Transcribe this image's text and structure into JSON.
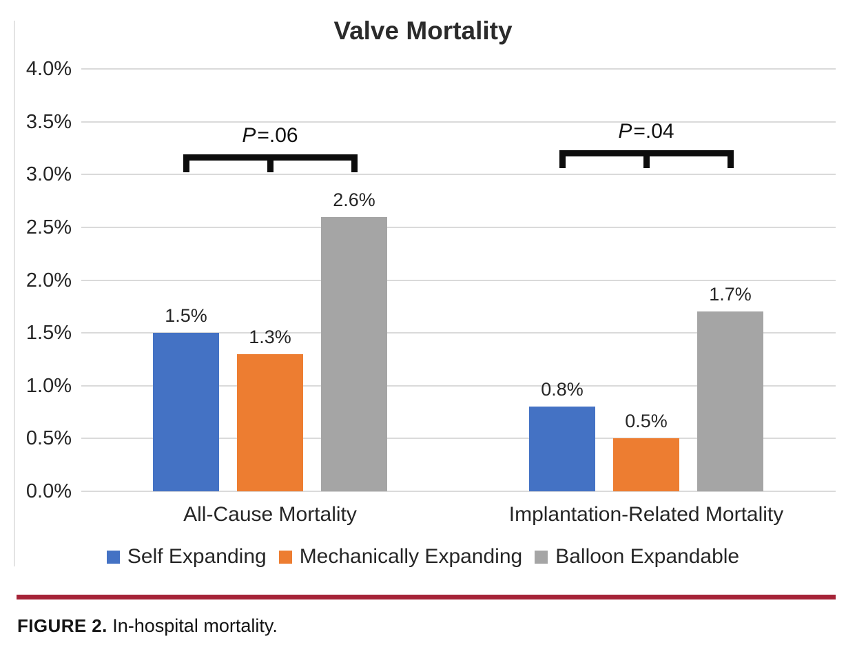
{
  "title": "Valve Mortality",
  "caption": {
    "label": "FIGURE 2.",
    "text": "In-hospital mortality."
  },
  "divider_color": "#A52337",
  "colors": {
    "self_expanding": "#4472C4",
    "mechanically_expanding": "#ED7D31",
    "balloon_expandable": "#A5A5A5",
    "gridline": "#DADADA",
    "bracket": "#0D0D0D"
  },
  "legend": [
    {
      "name": "Self Expanding",
      "color": "#4472C4"
    },
    {
      "name": "Mechanically Expanding",
      "color": "#ED7D31"
    },
    {
      "name": "Balloon Expandable",
      "color": "#A5A5A5"
    }
  ],
  "chart_data": {
    "type": "bar",
    "title": "Valve Mortality",
    "categories": [
      "All-Cause Mortality",
      "Implantation-Related Mortality"
    ],
    "series": [
      {
        "name": "Self Expanding",
        "color": "#4472C4",
        "values": [
          1.5,
          0.8
        ],
        "labels": [
          "1.5%",
          "0.8%"
        ]
      },
      {
        "name": "Mechanically Expanding",
        "color": "#ED7D31",
        "values": [
          1.3,
          0.5
        ],
        "labels": [
          "1.3%",
          "0.5%"
        ]
      },
      {
        "name": "Balloon Expandable",
        "color": "#A5A5A5",
        "values": [
          2.6,
          1.7
        ],
        "labels": [
          "2.6%",
          "1.7%"
        ]
      }
    ],
    "y_axis": {
      "min": 0,
      "max": 4,
      "step": 0.5,
      "tick_labels": [
        "0.0%",
        "0.5%",
        "1.0%",
        "1.5%",
        "2.0%",
        "2.5%",
        "3.0%",
        "3.5%",
        "4.0%"
      ]
    },
    "annotations": [
      {
        "category": "All-Cause Mortality",
        "p_prefix": "P",
        "p_value": "=.06"
      },
      {
        "category": "Implantation-Related Mortality",
        "p_prefix": "P",
        "p_value": "=.04"
      }
    ],
    "grid": true,
    "legend_position": "bottom",
    "value_labels_shown": true
  }
}
